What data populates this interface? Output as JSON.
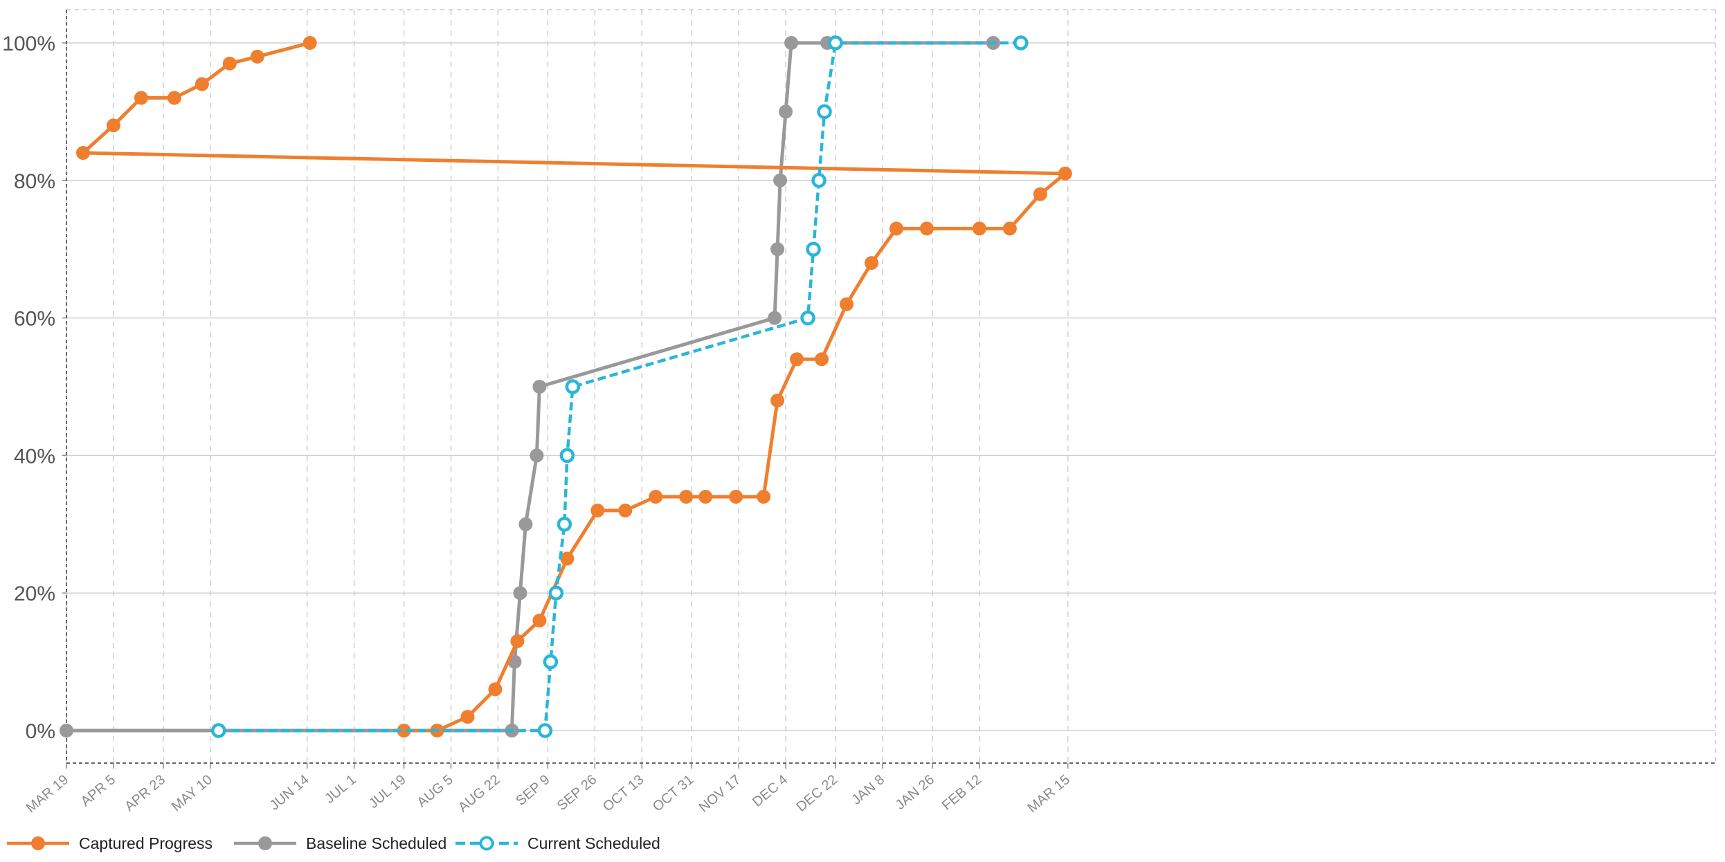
{
  "chart_data": {
    "type": "line",
    "title": "",
    "xlabel": "",
    "ylabel": "",
    "x_tick_labels": [
      "MAR 19",
      "APR 5",
      "APR 23",
      "MAY 10",
      "JUN 14",
      "JUL 1",
      "JUL 19",
      "AUG 5",
      "AUG 22",
      "SEP 9",
      "SEP 26",
      "OCT 13",
      "OCT 31",
      "NOV 17",
      "DEC 4",
      "DEC 22",
      "JAN 8",
      "JAN 26",
      "FEB 12",
      "MAR 15"
    ],
    "y_tick_labels": [
      "0%",
      "20%",
      "40%",
      "60%",
      "80%",
      "100%"
    ],
    "y_ticks": [
      0,
      20,
      40,
      60,
      80,
      100
    ],
    "ylim": [
      0,
      100
    ],
    "x_axis_kind": "date",
    "grid": true,
    "legend_position": "bottom-left",
    "series": [
      {
        "name": "Captured Progress",
        "color": "#ef7f2f",
        "style": "solid",
        "marker": "filled-circle",
        "points": [
          [
            "JUL 19",
            0
          ],
          [
            "Jul 31",
            0
          ],
          [
            "Aug 11",
            2
          ],
          [
            "Aug 21",
            6
          ],
          [
            "Aug 29",
            13
          ],
          [
            "Sep 6",
            16
          ],
          [
            "Sep 16",
            25
          ],
          [
            "Sep 27",
            32
          ],
          [
            "Oct 7",
            32
          ],
          [
            "Oct 18",
            34
          ],
          [
            "Oct 29",
            34
          ],
          [
            "Nov 5",
            34
          ],
          [
            "Nov 16",
            34
          ],
          [
            "Nov 26",
            34
          ],
          [
            "Dec 1",
            48
          ],
          [
            "Dec 8",
            54
          ],
          [
            "Dec 17",
            54
          ],
          [
            "Dec 26",
            62
          ],
          [
            "Jan 4",
            68
          ],
          [
            "Jan 13",
            73
          ],
          [
            "Jan 24",
            73
          ],
          [
            "Feb 12",
            73
          ],
          [
            "Feb 23",
            73
          ],
          [
            "Mar 5",
            78
          ],
          [
            "Mar 14",
            81
          ],
          [
            "Mar 25",
            84
          ],
          [
            "Apr 5",
            88
          ],
          [
            "Apr 15",
            92
          ],
          [
            "Apr 27",
            92
          ],
          [
            "May 7",
            94
          ],
          [
            "May 17",
            97
          ],
          [
            "May 27",
            98
          ],
          [
            "Jun 15",
            100
          ]
        ]
      },
      {
        "name": "Baseline Scheduled",
        "color": "#999999",
        "style": "solid",
        "marker": "filled-circle",
        "points": [
          [
            "MAR 19",
            0
          ],
          [
            "Aug 27",
            0
          ],
          [
            "Aug 28",
            10
          ],
          [
            "Aug 30",
            20
          ],
          [
            "Sep 1",
            30
          ],
          [
            "Sep 5",
            40
          ],
          [
            "Sep 6",
            50
          ],
          [
            "Nov 30",
            60
          ],
          [
            "Dec 1",
            70
          ],
          [
            "Dec 2",
            80
          ],
          [
            "Dec 4",
            90
          ],
          [
            "Dec 6",
            100
          ],
          [
            "Dec 19",
            100
          ],
          [
            "Feb 17",
            100
          ]
        ]
      },
      {
        "name": "Current Scheduled",
        "color": "#29b6d9",
        "style": "dashed",
        "marker": "hollow-circle",
        "points": [
          [
            "May 13",
            0
          ],
          [
            "Sep 8",
            0
          ],
          [
            "Sep 10",
            10
          ],
          [
            "Sep 12",
            20
          ],
          [
            "Sep 15",
            30
          ],
          [
            "Sep 16",
            40
          ],
          [
            "Sep 18",
            50
          ],
          [
            "Dec 12",
            60
          ],
          [
            "Dec 14",
            70
          ],
          [
            "Dec 16",
            80
          ],
          [
            "Dec 18",
            90
          ],
          [
            "Dec 22",
            100
          ],
          [
            "Feb 27",
            100
          ]
        ]
      }
    ]
  }
}
